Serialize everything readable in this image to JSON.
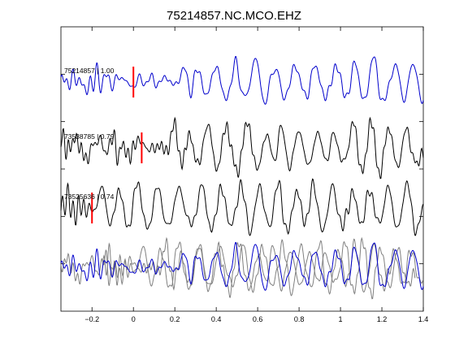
{
  "chart_data": {
    "type": "line",
    "title": "75214857.NC.MCO.EHZ",
    "xlabel": "",
    "ylabel": "",
    "xlim": [
      -0.35,
      1.4
    ],
    "x_ticks": [
      {
        "value": -0.2,
        "label": "−0.2"
      },
      {
        "value": 0,
        "label": "0"
      },
      {
        "value": 0.2,
        "label": "0.2"
      },
      {
        "value": 0.4,
        "label": "0.4"
      },
      {
        "value": 0.6,
        "label": "0.6"
      },
      {
        "value": 0.8,
        "label": "0.8"
      },
      {
        "value": 1,
        "label": "1"
      },
      {
        "value": 1.2,
        "label": "1.2"
      },
      {
        "value": 1.4,
        "label": "1.4"
      }
    ],
    "y_tick_count": 5,
    "grid": false,
    "colors": {
      "primary": "#0000cc",
      "secondary": "#000000",
      "overlay": "#808080",
      "pick": "#ff0000"
    },
    "series": [
      {
        "name": "75214857 | 1.00",
        "color": "#0000cc",
        "pick_time": 0.0,
        "onset": -0.02,
        "peaks": [
          0.25,
          0.31,
          0.4,
          0.49,
          0.59,
          0.68,
          0.78,
          0.88,
          0.98,
          1.07,
          1.16,
          1.26,
          1.35
        ]
      },
      {
        "name": "73538785 | 0.79",
        "color": "#000000",
        "pick_time": 0.04,
        "onset": 0.02,
        "peaks": [
          0.2,
          0.27,
          0.36,
          0.45,
          0.55,
          0.65,
          0.71,
          0.8,
          0.89,
          0.97,
          1.06,
          1.15,
          1.23,
          1.32
        ]
      },
      {
        "name": "73525636 | 0.74",
        "color": "#000000",
        "pick_time": -0.2,
        "onset": -0.21,
        "peaks": [
          -0.15,
          -0.07,
          0.02,
          0.12,
          0.22,
          0.33,
          0.42,
          0.52,
          0.61,
          0.7,
          0.79,
          0.87,
          0.96,
          1.06,
          1.14,
          1.23,
          1.32
        ]
      }
    ],
    "overlay": {
      "series": [
        "75214857",
        "73538785",
        "73525636"
      ]
    }
  }
}
